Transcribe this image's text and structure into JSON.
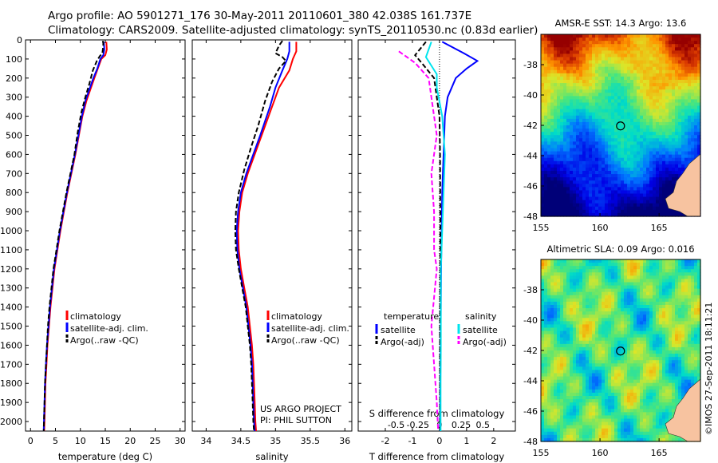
{
  "header": {
    "line1": "Argo profile: AO 5901271_176 30-May-2011 20110601_380 42.038S 161.737E",
    "line2": "Climatology: CARS2009. Satellite-adjusted climatology: synTS_20110530.nc (0.83d earlier)"
  },
  "credit": "©IMOS 27-Sep-2011 18:11:21",
  "colors": {
    "clim": "#ff0000",
    "sat": "#0000ff",
    "argo": "#000000",
    "sal_sat": "#00e5ee",
    "sal_argo": "#ff00ff"
  },
  "chart_data": [
    {
      "id": "temperature",
      "type": "line",
      "xlabel": "temperature (deg C)",
      "xlim": [
        -1,
        31
      ],
      "ylim": [
        0,
        2050
      ],
      "yticks": [
        0,
        100,
        200,
        300,
        400,
        500,
        600,
        700,
        800,
        900,
        1000,
        1100,
        1200,
        1300,
        1400,
        1500,
        1600,
        1700,
        1800,
        1900,
        2000
      ],
      "xticks": [
        0,
        5,
        10,
        15,
        20,
        25,
        30
      ],
      "legend": [
        "climatology",
        "satellite-adj. clim.",
        "Argo(..raw -QC)"
      ],
      "series": [
        {
          "name": "climatology",
          "color": "#ff0000",
          "dash": false,
          "points": [
            [
              15.2,
              10
            ],
            [
              15.3,
              50
            ],
            [
              15.0,
              80
            ],
            [
              14.2,
              100
            ],
            [
              13.5,
              150
            ],
            [
              12.8,
              200
            ],
            [
              12.0,
              260
            ],
            [
              11.2,
              320
            ],
            [
              10.4,
              400
            ],
            [
              9.7,
              500
            ],
            [
              9.0,
              600
            ],
            [
              8.2,
              700
            ],
            [
              7.4,
              800
            ],
            [
              6.7,
              900
            ],
            [
              6.0,
              1000
            ],
            [
              5.4,
              1100
            ],
            [
              4.8,
              1200
            ],
            [
              4.4,
              1300
            ],
            [
              4.0,
              1400
            ],
            [
              3.7,
              1500
            ],
            [
              3.4,
              1600
            ],
            [
              3.2,
              1700
            ],
            [
              3.0,
              1800
            ],
            [
              2.9,
              1900
            ],
            [
              2.8,
              2000
            ],
            [
              2.75,
              2050
            ]
          ]
        },
        {
          "name": "satellite-adj. clim.",
          "color": "#0000ff",
          "dash": false,
          "points": [
            [
              14.7,
              10
            ],
            [
              14.8,
              50
            ],
            [
              14.6,
              80
            ],
            [
              14.0,
              100
            ],
            [
              13.4,
              150
            ],
            [
              12.6,
              200
            ],
            [
              11.8,
              260
            ],
            [
              11.0,
              320
            ],
            [
              10.3,
              400
            ],
            [
              9.6,
              500
            ],
            [
              8.9,
              600
            ],
            [
              8.1,
              700
            ],
            [
              7.3,
              800
            ],
            [
              6.6,
              900
            ],
            [
              5.9,
              1000
            ],
            [
              5.3,
              1100
            ],
            [
              4.7,
              1200
            ],
            [
              4.3,
              1300
            ],
            [
              3.9,
              1400
            ],
            [
              3.6,
              1500
            ],
            [
              3.3,
              1600
            ],
            [
              3.1,
              1700
            ],
            [
              2.9,
              1800
            ],
            [
              2.8,
              1900
            ],
            [
              2.7,
              2000
            ],
            [
              2.65,
              2050
            ]
          ]
        },
        {
          "name": "Argo(..raw -QC)",
          "color": "#000000",
          "dash": true,
          "points": [
            [
              14.5,
              5
            ],
            [
              14.6,
              20
            ],
            [
              14.5,
              50
            ],
            [
              14.4,
              70
            ],
            [
              13.9,
              85
            ],
            [
              13.3,
              110
            ],
            [
              12.5,
              160
            ],
            [
              11.8,
              230
            ],
            [
              11.0,
              300
            ],
            [
              10.2,
              380
            ],
            [
              9.5,
              480
            ],
            [
              8.8,
              600
            ],
            [
              8.0,
              700
            ],
            [
              7.2,
              800
            ],
            [
              6.5,
              900
            ],
            [
              5.8,
              1000
            ],
            [
              5.2,
              1100
            ],
            [
              4.6,
              1200
            ],
            [
              4.2,
              1300
            ],
            [
              3.8,
              1400
            ],
            [
              3.5,
              1500
            ],
            [
              3.3,
              1600
            ],
            [
              3.1,
              1700
            ],
            [
              2.9,
              1800
            ],
            [
              2.8,
              1900
            ],
            [
              2.7,
              2000
            ],
            [
              2.65,
              2050
            ]
          ]
        }
      ]
    },
    {
      "id": "salinity",
      "type": "line",
      "xlabel": "salinity",
      "xlim": [
        33.8,
        36.1
      ],
      "ylim": [
        0,
        2050
      ],
      "xticks": [
        34,
        34.5,
        35,
        35.5,
        36
      ],
      "legend": [
        "climatology",
        "satellite-adj. clim.",
        "Argo(..raw -QC)"
      ],
      "annotation": [
        "US ARGO PROJECT",
        "PI: PHIL SUTTON"
      ],
      "series": [
        {
          "name": "climatology",
          "color": "#ff0000",
          "dash": false,
          "points": [
            [
              35.3,
              10
            ],
            [
              35.3,
              60
            ],
            [
              35.25,
              100
            ],
            [
              35.2,
              160
            ],
            [
              35.05,
              250
            ],
            [
              34.95,
              350
            ],
            [
              34.8,
              500
            ],
            [
              34.7,
              600
            ],
            [
              34.6,
              700
            ],
            [
              34.52,
              800
            ],
            [
              34.48,
              900
            ],
            [
              34.46,
              1000
            ],
            [
              34.47,
              1100
            ],
            [
              34.5,
              1200
            ],
            [
              34.55,
              1300
            ],
            [
              34.6,
              1400
            ],
            [
              34.63,
              1500
            ],
            [
              34.66,
              1600
            ],
            [
              34.68,
              1700
            ],
            [
              34.69,
              1800
            ],
            [
              34.7,
              1900
            ],
            [
              34.71,
              2000
            ],
            [
              34.72,
              2050
            ]
          ]
        },
        {
          "name": "satellite-adj. clim.",
          "color": "#0000ff",
          "dash": false,
          "points": [
            [
              35.2,
              10
            ],
            [
              35.2,
              60
            ],
            [
              35.17,
              100
            ],
            [
              35.1,
              160
            ],
            [
              35.0,
              250
            ],
            [
              34.92,
              350
            ],
            [
              34.78,
              500
            ],
            [
              34.68,
              600
            ],
            [
              34.58,
              700
            ],
            [
              34.5,
              800
            ],
            [
              34.46,
              900
            ],
            [
              34.44,
              1000
            ],
            [
              34.45,
              1100
            ],
            [
              34.48,
              1200
            ],
            [
              34.53,
              1300
            ],
            [
              34.58,
              1400
            ],
            [
              34.61,
              1500
            ],
            [
              34.64,
              1600
            ],
            [
              34.66,
              1700
            ],
            [
              34.67,
              1800
            ],
            [
              34.68,
              1900
            ],
            [
              34.69,
              2000
            ],
            [
              34.7,
              2050
            ]
          ]
        },
        {
          "name": "Argo(..raw -QC)",
          "color": "#000000",
          "dash": true,
          "points": [
            [
              35.1,
              5
            ],
            [
              35.05,
              30
            ],
            [
              35.0,
              70
            ],
            [
              35.1,
              90
            ],
            [
              35.15,
              110
            ],
            [
              35.05,
              150
            ],
            [
              34.95,
              220
            ],
            [
              34.85,
              320
            ],
            [
              34.75,
              450
            ],
            [
              34.65,
              560
            ],
            [
              34.55,
              680
            ],
            [
              34.47,
              800
            ],
            [
              34.43,
              900
            ],
            [
              34.42,
              1000
            ],
            [
              34.43,
              1100
            ],
            [
              34.47,
              1200
            ],
            [
              34.52,
              1300
            ],
            [
              34.57,
              1400
            ],
            [
              34.6,
              1500
            ],
            [
              34.63,
              1600
            ],
            [
              34.65,
              1700
            ],
            [
              34.66,
              1800
            ],
            [
              34.67,
              1900
            ],
            [
              34.68,
              2000
            ],
            [
              34.69,
              2050
            ]
          ]
        }
      ]
    },
    {
      "id": "difference",
      "type": "line",
      "xlabel": "T difference from climatology",
      "xlabel2": "S difference from climatology",
      "xlim": [
        -3,
        2.8
      ],
      "ylim": [
        0,
        2050
      ],
      "xticks": [
        -2,
        -1,
        0,
        1,
        2
      ],
      "xticks2": [
        "-0.5",
        "-0.25",
        "0",
        "0.25",
        "0.5"
      ],
      "legend_titles": [
        "temperature",
        "salinity"
      ],
      "legend": [
        "satellite",
        "Argo(-adj)",
        "satellite",
        "Argo(-adj)"
      ],
      "series": [
        {
          "name": "satellite",
          "color": "#0000ff",
          "dash": false,
          "points": [
            [
              0.1,
              10
            ],
            [
              0.9,
              70
            ],
            [
              1.4,
              110
            ],
            [
              1.0,
              150
            ],
            [
              0.6,
              200
            ],
            [
              0.3,
              300
            ],
            [
              0.2,
              400
            ],
            [
              0.15,
              600
            ],
            [
              0.1,
              800
            ],
            [
              0.08,
              1000
            ],
            [
              0.06,
              1200
            ],
            [
              0.05,
              1400
            ],
            [
              0.04,
              1600
            ],
            [
              0.03,
              1800
            ],
            [
              0.02,
              2000
            ],
            [
              0.02,
              2050
            ]
          ]
        },
        {
          "name": "Argo(-adj)",
          "color": "#000000",
          "dash": true,
          "points": [
            [
              -0.5,
              10
            ],
            [
              -0.9,
              80
            ],
            [
              -0.6,
              130
            ],
            [
              -0.2,
              200
            ],
            [
              -0.1,
              300
            ],
            [
              0.0,
              400
            ],
            [
              0.02,
              600
            ],
            [
              0.03,
              900
            ],
            [
              0.03,
              1200
            ],
            [
              0.02,
              1500
            ],
            [
              0.02,
              1800
            ],
            [
              0.02,
              2050
            ]
          ]
        },
        {
          "name": "satellite",
          "color": "#00e5ee",
          "dash": false,
          "points": [
            [
              -0.3,
              10
            ],
            [
              -0.5,
              90
            ],
            [
              -0.1,
              180
            ],
            [
              -0.1,
              250
            ],
            [
              0.1,
              400
            ],
            [
              0.2,
              600
            ],
            [
              0.15,
              800
            ],
            [
              0.1,
              1000
            ],
            [
              0.05,
              1200
            ],
            [
              0.05,
              1400
            ],
            [
              0.05,
              1600
            ],
            [
              0.04,
              1800
            ],
            [
              0.04,
              2050
            ]
          ]
        },
        {
          "name": "Argo(-adj)",
          "color": "#ff00ff",
          "dash": true,
          "points": [
            [
              -1.5,
              60
            ],
            [
              -0.9,
              120
            ],
            [
              -0.4,
              200
            ],
            [
              -0.1,
              500
            ],
            [
              -0.3,
              700
            ],
            [
              -0.2,
              900
            ],
            [
              -0.2,
              1100
            ],
            [
              -0.1,
              1200
            ],
            [
              -0.3,
              1500
            ],
            [
              -0.2,
              1700
            ],
            [
              -0.1,
              1900
            ],
            [
              -0.05,
              2050
            ]
          ]
        }
      ]
    },
    {
      "id": "sst-map",
      "type": "heatmap",
      "title": "AMSR-E SST: 14.3 Argo: 13.6",
      "xlim": [
        155,
        168.5
      ],
      "ylim": [
        -48,
        -36
      ],
      "xticks": [
        155,
        160,
        165
      ],
      "yticks": [
        -38,
        -40,
        -42,
        -44,
        -46,
        -48
      ],
      "float_position": [
        161.737,
        -42.038
      ]
    },
    {
      "id": "sla-map",
      "type": "heatmap",
      "title": "Altimetric SLA: 0.09 Argo: 0.016",
      "xlim": [
        155,
        168.5
      ],
      "ylim": [
        -48,
        -36
      ],
      "xticks": [
        155,
        160,
        165
      ],
      "yticks": [
        -38,
        -40,
        -42,
        -44,
        -46,
        -48
      ],
      "float_position": [
        161.737,
        -42.038
      ]
    }
  ]
}
